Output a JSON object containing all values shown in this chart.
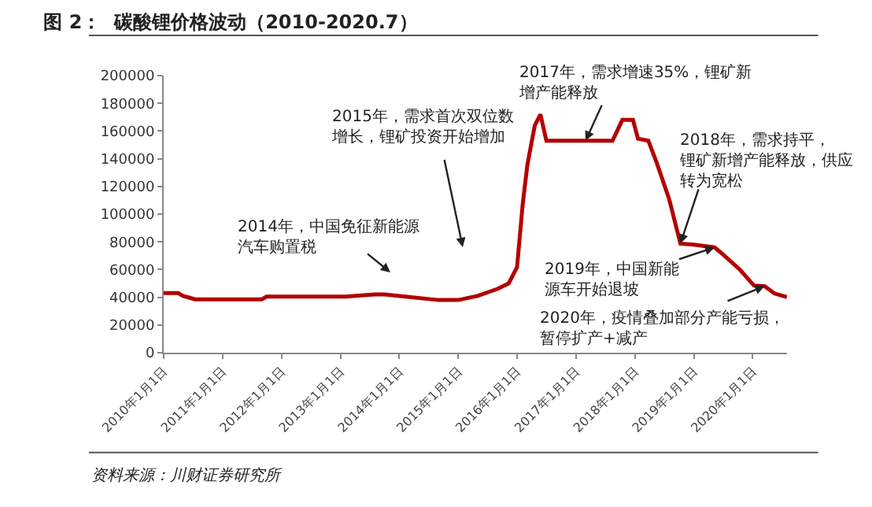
{
  "chart_data": {
    "type": "line",
    "title": "图 2：  碳酸锂价格波动（2010-2020.7）",
    "x": [
      "2010-01-01",
      "2010-04-01",
      "2010-05-01",
      "2010-07-15",
      "2011-09-01",
      "2011-10-01",
      "2013-02-01",
      "2013-08-01",
      "2013-10-01",
      "2014-09-01",
      "2015-01-01",
      "2015-05-01",
      "2015-09-01",
      "2015-11-10",
      "2016-01-01",
      "2016-02-05",
      "2016-03-05",
      "2016-04-20",
      "2016-05-25",
      "2016-07-01",
      "2017-08-15",
      "2017-10-15",
      "2017-12-20",
      "2018-01-20",
      "2018-03-25",
      "2018-05-15",
      "2018-08-01",
      "2018-10-10",
      "2019-01-01",
      "2019-05-10",
      "2019-07-01",
      "2019-10-15",
      "2020-01-10",
      "2020-03-15",
      "2020-05-15",
      "2020-07-31"
    ],
    "series": [
      {
        "color": "#b40000",
        "values": [
          43000,
          43000,
          41000,
          38500,
          38500,
          40500,
          40500,
          42000,
          42000,
          38000,
          38000,
          41000,
          46000,
          50000,
          61700,
          107000,
          135500,
          164000,
          172000,
          153000,
          153000,
          168000,
          168000,
          154500,
          153000,
          137500,
          111000,
          78700,
          78000,
          76000,
          71000,
          59800,
          48400,
          48000,
          42700,
          40100
        ]
      }
    ],
    "xlim": [
      "2010-01-01",
      "2020-08-01"
    ],
    "xticks": [
      {
        "value": "2010-01-01",
        "label": "2010年1月1日"
      },
      {
        "value": "2011-01-01",
        "label": "2011年1月1日"
      },
      {
        "value": "2012-01-01",
        "label": "2012年1月1日"
      },
      {
        "value": "2013-01-01",
        "label": "2013年1月1日"
      },
      {
        "value": "2014-01-01",
        "label": "2014年1月1日"
      },
      {
        "value": "2015-01-01",
        "label": "2015年1月1日"
      },
      {
        "value": "2016-01-01",
        "label": "2016年1月1日"
      },
      {
        "value": "2017-01-01",
        "label": "2017年1月1日"
      },
      {
        "value": "2018-01-01",
        "label": "2018年1月1日"
      },
      {
        "value": "2019-01-01",
        "label": "2019年1月1日"
      },
      {
        "value": "2020-01-01",
        "label": "2020年1月1日"
      }
    ],
    "ylim": [
      0,
      200000
    ],
    "yticks": [
      0,
      20000,
      40000,
      60000,
      80000,
      100000,
      120000,
      140000,
      160000,
      180000,
      200000
    ],
    "marker": "none",
    "line_style": "solid",
    "annotations": [
      "2014年，中国免征新能源汽车购置税",
      "2015年，需求首次双位数增长，锂矿投资开始增加",
      {
        "text": "2017年，需求增速35%，锂矿新增产能释放",
        "x": "2017-03-01",
        "y": 153000
      },
      {
        "text": "2018年，需求持平，锂矿新增产能释放，供应转为宽松",
        "x": "2018-10-10",
        "y": 78700
      },
      {
        "text": "2019年，中国新能源车开始退坡",
        "x": "2019-05-10",
        "y": 76000
      },
      {
        "text": "2020年，疫情叠加部分产能亏损，暂停扩产+减产",
        "x": "2020-03-15",
        "y": 48000
      },
      "资料来源：川财证券研究所"
    ]
  }
}
